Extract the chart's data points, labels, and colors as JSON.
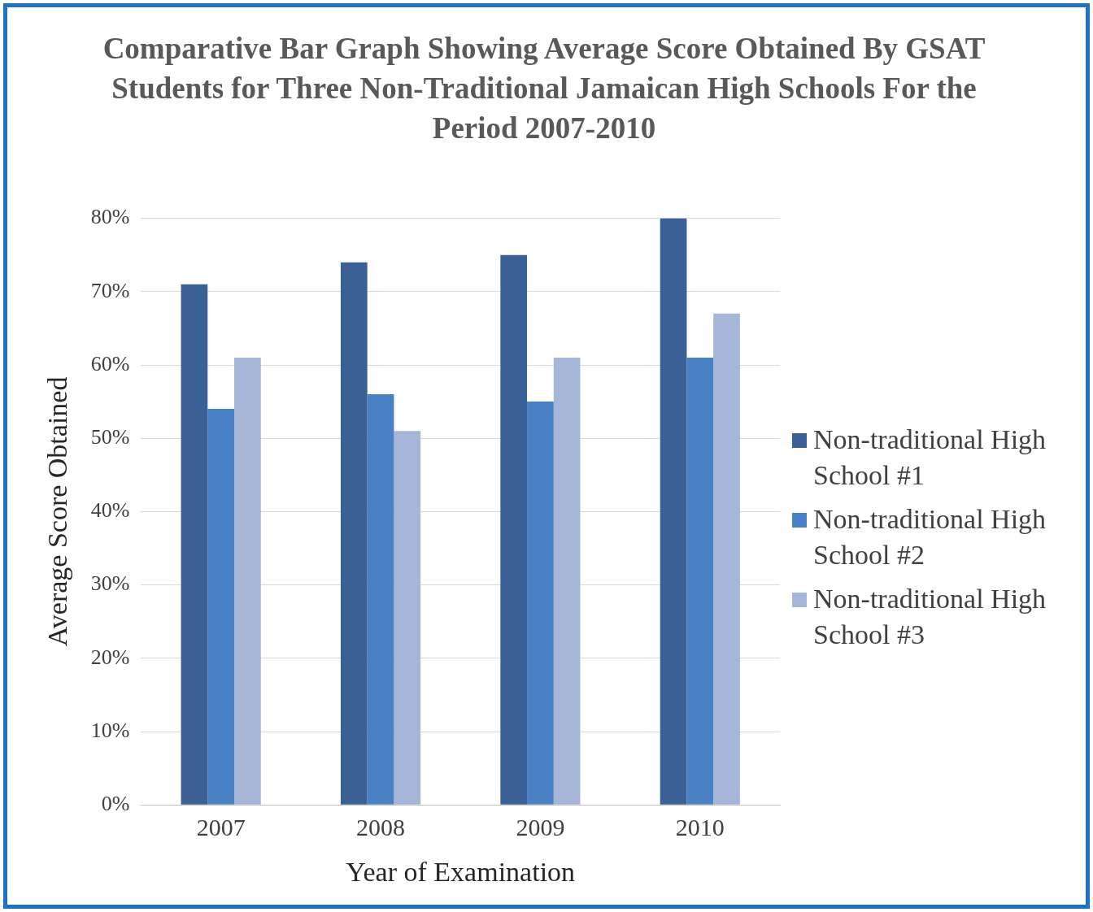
{
  "chart_data": {
    "type": "bar",
    "title": "Comparative Bar Graph Showing Average Score Obtained By GSAT Students for Three Non-Traditional Jamaican High Schools For the Period 2007-2010",
    "xlabel": "Year of Examination",
    "ylabel": "Average Score Obtained",
    "categories": [
      "2007",
      "2008",
      "2009",
      "2010"
    ],
    "series": [
      {
        "name": "Non-traditional High School #1",
        "color": "#3b6096",
        "values": [
          71,
          74,
          75,
          80
        ]
      },
      {
        "name": "Non-traditional High School #2",
        "color": "#4a80c4",
        "values": [
          54,
          56,
          55,
          61
        ]
      },
      {
        "name": "Non-traditional High School #3",
        "color": "#a6b6d8",
        "values": [
          61,
          51,
          61,
          67
        ]
      }
    ],
    "ylim": [
      0,
      80
    ],
    "yticks": [
      {
        "value": 0,
        "label": "0%"
      },
      {
        "value": 10,
        "label": "10%"
      },
      {
        "value": 20,
        "label": "20%"
      },
      {
        "value": 30,
        "label": "30%"
      },
      {
        "value": 40,
        "label": "40%"
      },
      {
        "value": 50,
        "label": "50%"
      },
      {
        "value": 60,
        "label": "60%"
      },
      {
        "value": 70,
        "label": "70%"
      },
      {
        "value": 80,
        "label": "80%"
      }
    ],
    "grid": "y",
    "legend": "right"
  }
}
